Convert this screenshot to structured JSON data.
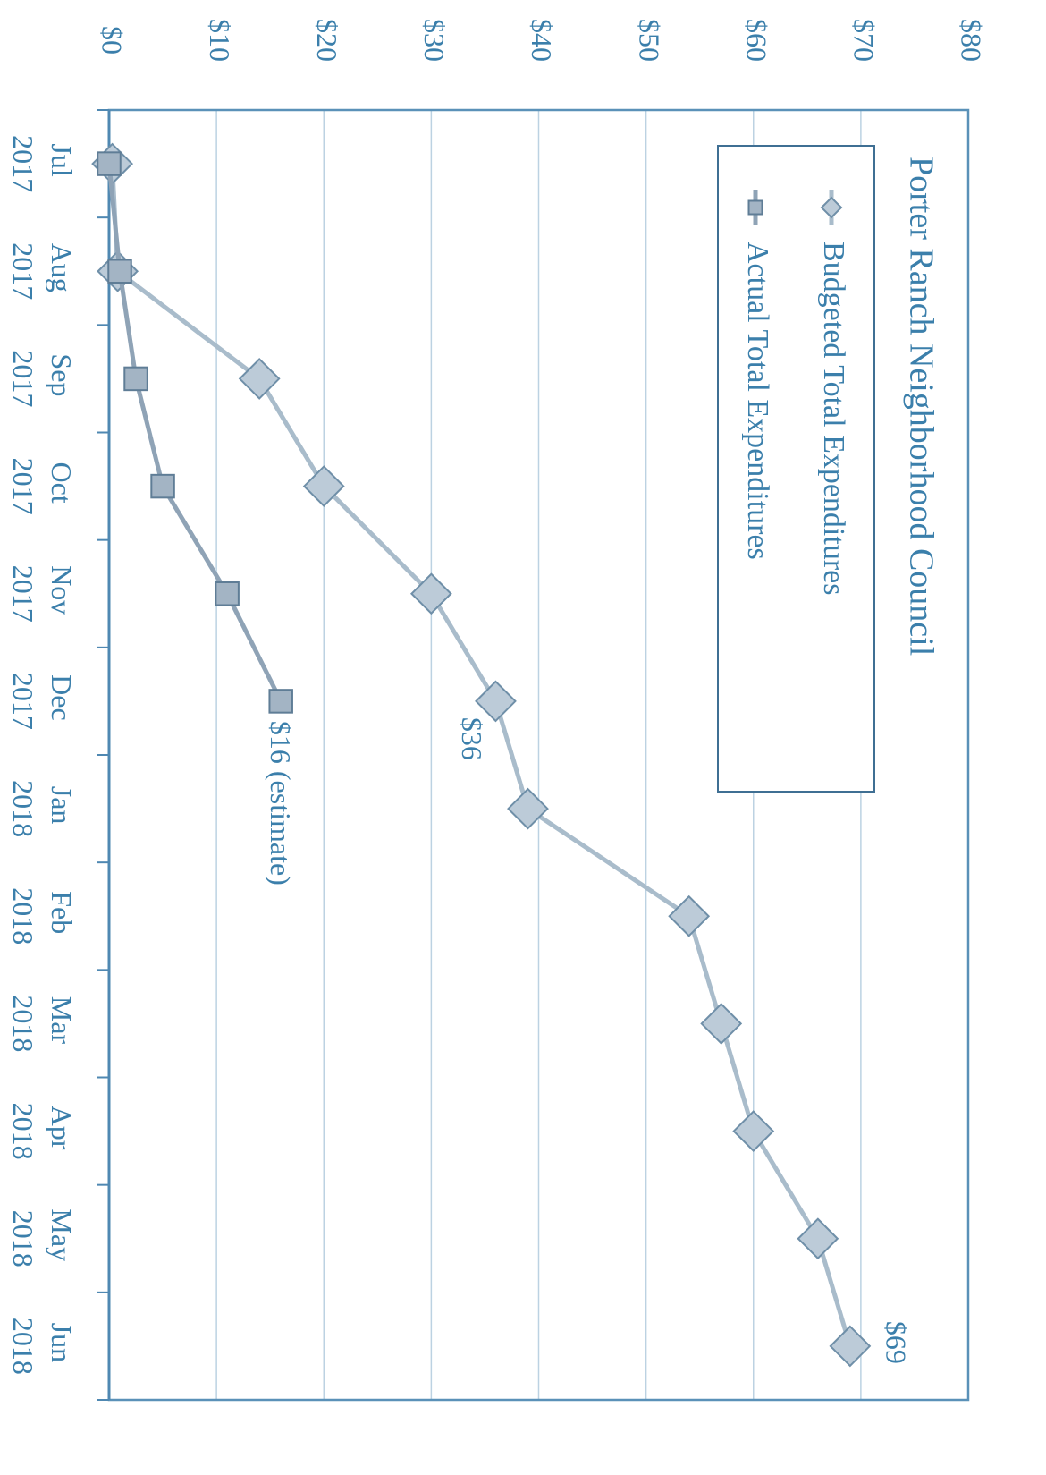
{
  "chart_data": {
    "type": "line",
    "title": "Porter Ranch Neighborhood Council",
    "categories": [
      "Jul 2017",
      "Aug 2017",
      "Sep 2017",
      "Oct 2017",
      "Nov 2017",
      "Dec 2017",
      "Jan 2018",
      "Feb 2018",
      "Mar 2018",
      "Apr 2018",
      "May 2018",
      "Jun 2018"
    ],
    "series": [
      {
        "name": "Budgeted Total Expenditures",
        "color": "#a9bccb",
        "marker": "diamond",
        "values": [
          0.3,
          0.8,
          14,
          20,
          30,
          36,
          39,
          54,
          57,
          60,
          66,
          69
        ],
        "value_labels": [
          null,
          null,
          null,
          null,
          null,
          "$36",
          null,
          null,
          null,
          null,
          null,
          "$69"
        ]
      },
      {
        "name": "Actual Total Expenditures",
        "color": "#8fa3b6",
        "marker": "square",
        "values": [
          0,
          1,
          2.5,
          5,
          11,
          16,
          null,
          null,
          null,
          null,
          null,
          null
        ],
        "value_labels": [
          null,
          null,
          null,
          null,
          null,
          "$16 (estimate)",
          null,
          null,
          null,
          null,
          null,
          null
        ]
      }
    ],
    "ylim": [
      0,
      80
    ],
    "yticks": [
      {
        "value": 0,
        "label": "$0"
      },
      {
        "value": 10,
        "label": "$10"
      },
      {
        "value": 20,
        "label": "$20"
      },
      {
        "value": 30,
        "label": "$30"
      },
      {
        "value": 40,
        "label": "$40"
      },
      {
        "value": 50,
        "label": "$50"
      },
      {
        "value": 60,
        "label": "$60"
      },
      {
        "value": 70,
        "label": "$70"
      },
      {
        "value": 80,
        "label": "$80"
      }
    ],
    "grid": true,
    "legend": "top-right"
  }
}
